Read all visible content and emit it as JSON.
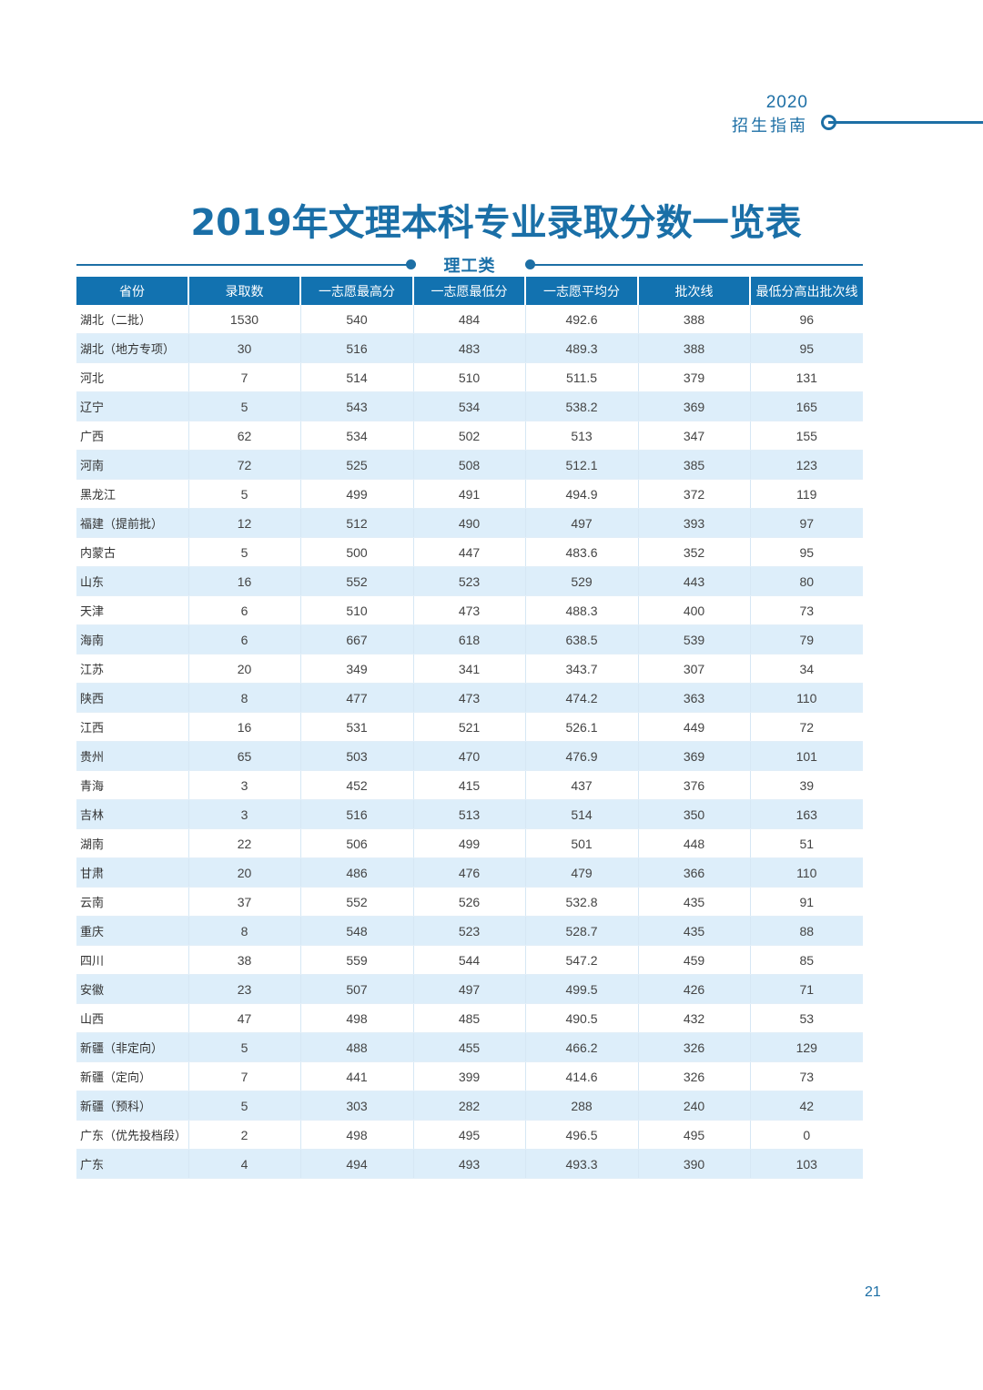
{
  "header": {
    "year": "2020",
    "guide_label": "招生指南"
  },
  "page_title": "2019年文理本科专业录取分数一览表",
  "section": {
    "label": "理工类"
  },
  "table": {
    "columns": [
      "省份",
      "录取数",
      "一志愿最高分",
      "一志愿最低分",
      "一志愿平均分",
      "批次线",
      "最低分高出批次线"
    ],
    "rows": [
      [
        "湖北（二批）",
        "1530",
        "540",
        "484",
        "492.6",
        "388",
        "96"
      ],
      [
        "湖北（地方专项）",
        "30",
        "516",
        "483",
        "489.3",
        "388",
        "95"
      ],
      [
        "河北",
        "7",
        "514",
        "510",
        "511.5",
        "379",
        "131"
      ],
      [
        "辽宁",
        "5",
        "543",
        "534",
        "538.2",
        "369",
        "165"
      ],
      [
        "广西",
        "62",
        "534",
        "502",
        "513",
        "347",
        "155"
      ],
      [
        "河南",
        "72",
        "525",
        "508",
        "512.1",
        "385",
        "123"
      ],
      [
        "黑龙江",
        "5",
        "499",
        "491",
        "494.9",
        "372",
        "119"
      ],
      [
        "福建（提前批）",
        "12",
        "512",
        "490",
        "497",
        "393",
        "97"
      ],
      [
        "内蒙古",
        "5",
        "500",
        "447",
        "483.6",
        "352",
        "95"
      ],
      [
        "山东",
        "16",
        "552",
        "523",
        "529",
        "443",
        "80"
      ],
      [
        "天津",
        "6",
        "510",
        "473",
        "488.3",
        "400",
        "73"
      ],
      [
        "海南",
        "6",
        "667",
        "618",
        "638.5",
        "539",
        "79"
      ],
      [
        "江苏",
        "20",
        "349",
        "341",
        "343.7",
        "307",
        "34"
      ],
      [
        "陕西",
        "8",
        "477",
        "473",
        "474.2",
        "363",
        "110"
      ],
      [
        "江西",
        "16",
        "531",
        "521",
        "526.1",
        "449",
        "72"
      ],
      [
        "贵州",
        "65",
        "503",
        "470",
        "476.9",
        "369",
        "101"
      ],
      [
        "青海",
        "3",
        "452",
        "415",
        "437",
        "376",
        "39"
      ],
      [
        "吉林",
        "3",
        "516",
        "513",
        "514",
        "350",
        "163"
      ],
      [
        "湖南",
        "22",
        "506",
        "499",
        "501",
        "448",
        "51"
      ],
      [
        "甘肃",
        "20",
        "486",
        "476",
        "479",
        "366",
        "110"
      ],
      [
        "云南",
        "37",
        "552",
        "526",
        "532.8",
        "435",
        "91"
      ],
      [
        "重庆",
        "8",
        "548",
        "523",
        "528.7",
        "435",
        "88"
      ],
      [
        "四川",
        "38",
        "559",
        "544",
        "547.2",
        "459",
        "85"
      ],
      [
        "安徽",
        "23",
        "507",
        "497",
        "499.5",
        "426",
        "71"
      ],
      [
        "山西",
        "47",
        "498",
        "485",
        "490.5",
        "432",
        "53"
      ],
      [
        "新疆（非定向）",
        "5",
        "488",
        "455",
        "466.2",
        "326",
        "129"
      ],
      [
        "新疆（定向）",
        "7",
        "441",
        "399",
        "414.6",
        "326",
        "73"
      ],
      [
        "新疆（预科）",
        "5",
        "303",
        "282",
        "288",
        "240",
        "42"
      ],
      [
        "广东（优先投档段）",
        "2",
        "498",
        "495",
        "496.5",
        "495",
        "0"
      ],
      [
        "广东",
        "4",
        "494",
        "493",
        "493.3",
        "390",
        "103"
      ]
    ]
  },
  "page_number": "21",
  "colors": {
    "accent": "#1d6fa5",
    "header_bg": "#1272b0",
    "stripe": "#ddeefa"
  }
}
